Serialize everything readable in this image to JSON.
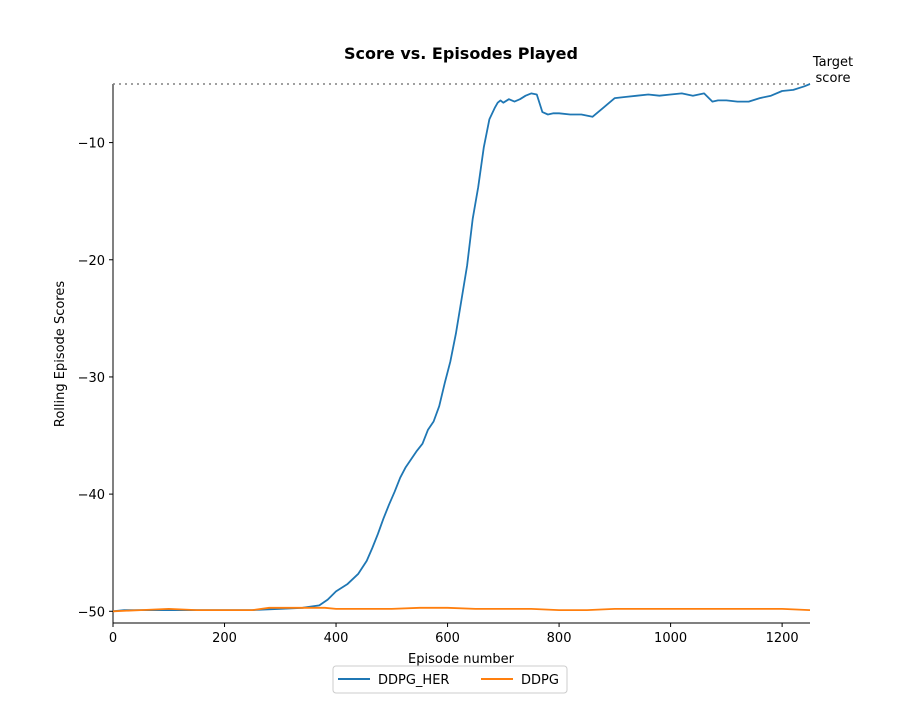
{
  "chart_data": {
    "type": "line",
    "title": "Score vs. Episodes Played",
    "xlabel": "Episode number",
    "ylabel": "Rolling Episode Scores",
    "xlim": [
      0,
      1250
    ],
    "ylim": [
      -51,
      -5
    ],
    "xticks": [
      0,
      200,
      400,
      600,
      800,
      1000,
      1200
    ],
    "yticks": [
      -50,
      -40,
      -30,
      -20,
      -10
    ],
    "ytick_labels": [
      "−50",
      "−40",
      "−30",
      "−20",
      "−10"
    ],
    "target": {
      "value": -5,
      "label_line1": "Target",
      "label_line2": "score",
      "color": "#808080"
    },
    "legend_position": "below plot, centered",
    "grid": false,
    "series": [
      {
        "name": "DDPG_HER",
        "color": "#1f77b4",
        "x": [
          0,
          20,
          50,
          100,
          150,
          200,
          250,
          300,
          340,
          370,
          385,
          400,
          420,
          440,
          455,
          465,
          475,
          485,
          495,
          505,
          515,
          525,
          535,
          545,
          555,
          565,
          575,
          585,
          595,
          605,
          615,
          625,
          635,
          645,
          655,
          665,
          675,
          685,
          690,
          695,
          700,
          710,
          720,
          730,
          740,
          750,
          760,
          770,
          780,
          790,
          800,
          820,
          840,
          860,
          880,
          890,
          900,
          920,
          940,
          960,
          980,
          1000,
          1020,
          1040,
          1060,
          1075,
          1085,
          1100,
          1120,
          1140,
          1160,
          1180,
          1200,
          1220,
          1240,
          1250
        ],
        "y": [
          -50,
          -49.9,
          -49.9,
          -49.9,
          -49.9,
          -49.9,
          -49.9,
          -49.8,
          -49.7,
          -49.5,
          -49.0,
          -48.3,
          -47.7,
          -46.8,
          -45.7,
          -44.6,
          -43.4,
          -42.1,
          -40.9,
          -39.8,
          -38.6,
          -37.7,
          -37.0,
          -36.3,
          -35.7,
          -34.5,
          -33.8,
          -32.5,
          -30.5,
          -28.7,
          -26.3,
          -23.4,
          -20.5,
          -16.5,
          -13.8,
          -10.4,
          -8.0,
          -7.0,
          -6.6,
          -6.4,
          -6.6,
          -6.3,
          -6.5,
          -6.3,
          -6.0,
          -5.8,
          -5.9,
          -7.4,
          -7.6,
          -7.5,
          -7.5,
          -7.6,
          -7.6,
          -7.8,
          -7.0,
          -6.6,
          -6.2,
          -6.1,
          -6.0,
          -5.9,
          -6.0,
          -5.9,
          -5.8,
          -6.0,
          -5.8,
          -6.5,
          -6.4,
          -6.4,
          -6.5,
          -6.5,
          -6.2,
          -6.0,
          -5.6,
          -5.5,
          -5.2,
          -5.0
        ]
      },
      {
        "name": "DDPG",
        "color": "#ff7f0e",
        "x": [
          0,
          50,
          100,
          150,
          200,
          250,
          280,
          300,
          340,
          380,
          400,
          450,
          500,
          550,
          600,
          650,
          700,
          750,
          800,
          850,
          900,
          950,
          1000,
          1050,
          1100,
          1150,
          1200,
          1250
        ],
        "y": [
          -50,
          -49.9,
          -49.8,
          -49.9,
          -49.9,
          -49.9,
          -49.7,
          -49.7,
          -49.7,
          -49.7,
          -49.8,
          -49.8,
          -49.8,
          -49.7,
          -49.7,
          -49.8,
          -49.8,
          -49.8,
          -49.9,
          -49.9,
          -49.8,
          -49.8,
          -49.8,
          -49.8,
          -49.8,
          -49.8,
          -49.8,
          -49.9
        ]
      }
    ]
  }
}
